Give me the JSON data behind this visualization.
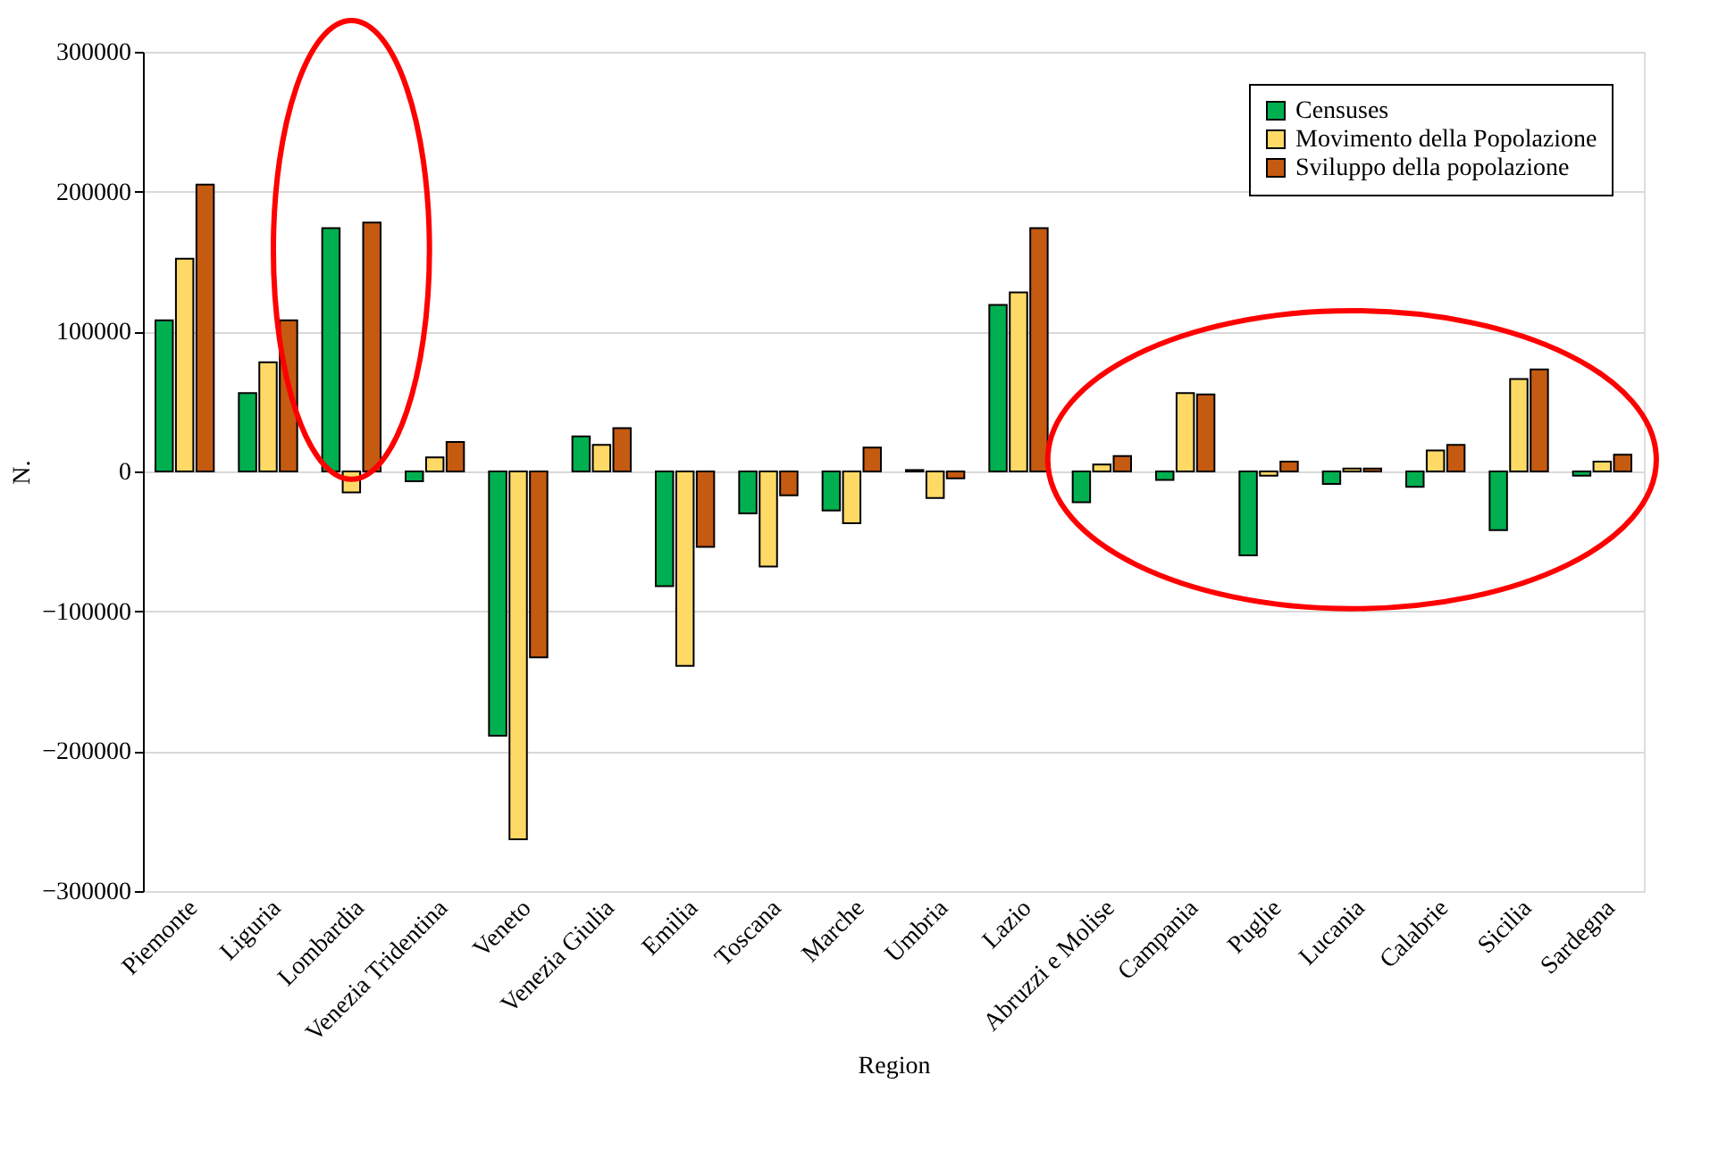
{
  "chart_data": {
    "type": "bar",
    "xlabel": "Region",
    "ylabel": "N.",
    "categories": [
      "Piemonte",
      "Liguria",
      "Lombardia",
      "Venezia Tridentina",
      "Veneto",
      "Venezia Giulia",
      "Emilia",
      "Toscana",
      "Marche",
      "Umbria",
      "Lazio",
      "Abruzzi e Molise",
      "Campania",
      "Puglie",
      "Lucania",
      "Calabrie",
      "Sicilia",
      "Sardegna"
    ],
    "series": [
      {
        "name": "Censuses",
        "color": "#00b050",
        "values": [
          108000,
          56000,
          174000,
          -7000,
          -189000,
          25000,
          -82000,
          -30000,
          -28000,
          1000,
          119000,
          -22000,
          -6000,
          -60000,
          -9000,
          -11000,
          -42000,
          -3000
        ]
      },
      {
        "name": "Movimento della Popolazione",
        "color": "#ffd966",
        "values": [
          152000,
          78000,
          -15000,
          10000,
          -263000,
          19000,
          -139000,
          -68000,
          -37000,
          -19000,
          128000,
          5000,
          56000,
          -3000,
          2000,
          15000,
          66000,
          7000
        ]
      },
      {
        "name": "Sviluppo della popolazione",
        "color": "#c55a11",
        "values": [
          205000,
          108000,
          178000,
          21000,
          -133000,
          31000,
          -54000,
          -17000,
          17000,
          -5000,
          174000,
          11000,
          55000,
          7000,
          2000,
          19000,
          73000,
          12000
        ]
      }
    ],
    "ylim": [
      -300000,
      300000
    ],
    "yticks": [
      -300000,
      -200000,
      -100000,
      0,
      100000,
      200000,
      300000
    ],
    "grid": "y",
    "legend": "top right"
  }
}
